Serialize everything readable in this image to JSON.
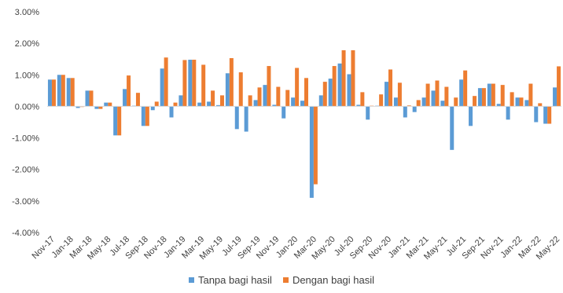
{
  "chart_data": {
    "type": "bar",
    "title": "",
    "xlabel": "",
    "ylabel": "",
    "ylim": [
      -4.0,
      3.0
    ],
    "yticks": [
      "3.00%",
      "2.00%",
      "1.00%",
      "0.00%",
      "-1.00%",
      "-2.00%",
      "-3.00%",
      "-4.00%"
    ],
    "grid": false,
    "legend_position": "bottom",
    "categories": [
      "Nov-17",
      "Dec-17",
      "Jan-18",
      "Feb-18",
      "Mar-18",
      "Apr-18",
      "May-18",
      "Jun-18",
      "Jul-18",
      "Aug-18",
      "Sep-18",
      "Oct-18",
      "Nov-18",
      "Dec-18",
      "Jan-19",
      "Feb-19",
      "Mar-19",
      "Apr-19",
      "May-19",
      "Jun-19",
      "Jul-19",
      "Aug-19",
      "Sep-19",
      "Oct-19",
      "Nov-19",
      "Dec-19",
      "Jan-20",
      "Feb-20",
      "Mar-20",
      "Apr-20",
      "May-20",
      "Jun-20",
      "Jul-20",
      "Aug-20",
      "Sep-20",
      "Oct-20",
      "Nov-20",
      "Dec-20",
      "Jan-21",
      "Feb-21",
      "Mar-21",
      "Apr-21",
      "May-21",
      "Jun-21",
      "Jul-21",
      "Aug-21",
      "Sep-21",
      "Oct-21",
      "Nov-21",
      "Dec-21",
      "Jan-22",
      "Feb-22",
      "Mar-22",
      "Apr-22",
      "May-22"
    ],
    "labels_shown": [
      "Nov-17",
      "Jan-18",
      "Mar-18",
      "May-18",
      "Jul-18",
      "Sep-18",
      "Nov-18",
      "Jan-19",
      "Mar-19",
      "May-19",
      "Jul-19",
      "Sep-19",
      "Nov-19",
      "Jan-20",
      "Mar-20",
      "May-20",
      "Jul-20",
      "Sep-20",
      "Nov-20",
      "Jan-21",
      "Mar-21",
      "May-21",
      "Jul-21",
      "Sep-21",
      "Nov-21",
      "Jan-22",
      "Mar-22",
      "May-22"
    ],
    "series": [
      {
        "name": "Tanpa bagi hasil",
        "color": "#5B9BD5",
        "values": [
          0.85,
          1.0,
          0.9,
          -0.05,
          0.5,
          -0.08,
          0.12,
          -0.92,
          0.55,
          0.02,
          -0.62,
          -0.12,
          1.2,
          -0.35,
          0.35,
          1.48,
          0.12,
          0.15,
          0.04,
          1.05,
          -0.72,
          -0.8,
          0.2,
          0.68,
          0.05,
          -0.38,
          0.28,
          0.18,
          -2.9,
          0.35,
          0.88,
          1.36,
          1.02,
          0.05,
          -0.42,
          0.02,
          0.78,
          0.28,
          -0.35,
          -0.18,
          0.28,
          0.5,
          0.18,
          -1.38,
          0.85,
          -0.62,
          0.58,
          0.72,
          0.08,
          -0.42,
          0.28,
          0.2,
          -0.5,
          -0.55,
          0.6
        ]
      },
      {
        "name": "Dengan bagi hasil",
        "color": "#ED7D31",
        "values": [
          0.85,
          1.0,
          0.9,
          -0.02,
          0.5,
          -0.08,
          0.12,
          -0.92,
          0.98,
          0.43,
          -0.62,
          0.15,
          1.55,
          0.12,
          1.47,
          1.48,
          1.32,
          0.5,
          0.35,
          1.53,
          1.08,
          0.35,
          0.6,
          1.28,
          0.62,
          0.52,
          1.22,
          0.9,
          -2.47,
          0.78,
          1.28,
          1.78,
          1.78,
          0.45,
          0.02,
          0.38,
          1.17,
          0.75,
          0.03,
          0.2,
          0.72,
          0.82,
          0.62,
          0.28,
          1.14,
          0.33,
          0.58,
          0.72,
          0.68,
          0.45,
          0.28,
          0.72,
          0.1,
          -0.55,
          1.27
        ]
      }
    ]
  }
}
